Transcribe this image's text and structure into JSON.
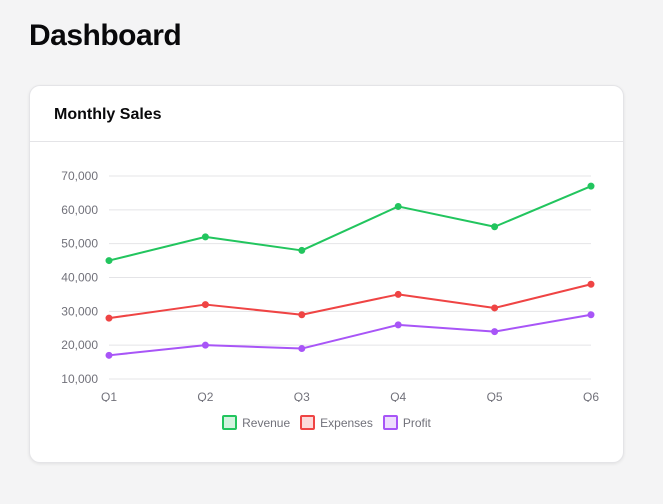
{
  "page": {
    "title": "Dashboard"
  },
  "card": {
    "title": "Monthly Sales"
  },
  "chart_data": {
    "type": "line",
    "title": "Monthly Sales",
    "categories": [
      "Q1",
      "Q2",
      "Q3",
      "Q4",
      "Q5",
      "Q6"
    ],
    "series": [
      {
        "name": "Revenue",
        "color": "#22c55e",
        "values": [
          45000,
          52000,
          48000,
          61000,
          55000,
          67000
        ]
      },
      {
        "name": "Expenses",
        "color": "#ef4444",
        "values": [
          28000,
          32000,
          29000,
          35000,
          31000,
          38000
        ]
      },
      {
        "name": "Profit",
        "color": "#a855f7",
        "values": [
          17000,
          20000,
          19000,
          26000,
          24000,
          29000
        ]
      }
    ],
    "yticks": [
      "10,000",
      "20,000",
      "30,000",
      "40,000",
      "50,000",
      "60,000",
      "70,000"
    ],
    "ylim": [
      10000,
      70000
    ],
    "grid": true,
    "legend_position": "bottom"
  }
}
